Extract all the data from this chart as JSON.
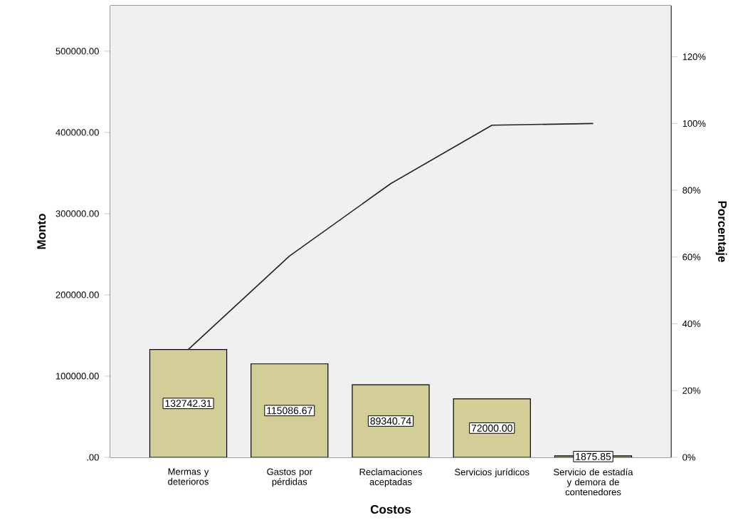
{
  "chart_data": {
    "type": "bar",
    "xlabel": "Costos",
    "ylabel": "Monto",
    "y2label": "Porcentaje",
    "categories": [
      "Mermas y deterioros",
      "Gastos por pérdidas",
      "Reclamaciones aceptadas",
      "Servicios jurídicos",
      "Servicio de estadía y demora de contenedores"
    ],
    "series": [
      {
        "color": "#d3ce98",
        "values": [
          132742.31,
          115086.67,
          89340.74,
          72000.0,
          1875.85
        ],
        "value_labels": [
          "132742.31",
          "115086.67",
          "89340.74",
          "72000.00",
          "1875.85"
        ]
      },
      {
        "type": "line",
        "axis": "y2",
        "color": "#222222",
        "values": [
          32.3,
          60.3,
          82.0,
          99.5,
          100
        ]
      }
    ],
    "ylim": [
      0,
      556000
    ],
    "yticks": [
      {
        "value": 0,
        "label": ".00"
      },
      {
        "value": 100000,
        "label": "100000.00"
      },
      {
        "value": 200000,
        "label": "200000.00"
      },
      {
        "value": 300000,
        "label": "300000.00"
      },
      {
        "value": 400000,
        "label": "400000.00"
      },
      {
        "value": 500000,
        "label": "500000.00"
      }
    ],
    "y2lim": [
      0,
      135.3
    ],
    "y2ticks": [
      {
        "value": 0,
        "label": "0%"
      },
      {
        "value": 20,
        "label": "20%"
      },
      {
        "value": 40,
        "label": "40%"
      },
      {
        "value": 60,
        "label": "60%"
      },
      {
        "value": 80,
        "label": "80%"
      },
      {
        "value": 100,
        "label": "100%"
      },
      {
        "value": 120,
        "label": "120%"
      }
    ]
  }
}
